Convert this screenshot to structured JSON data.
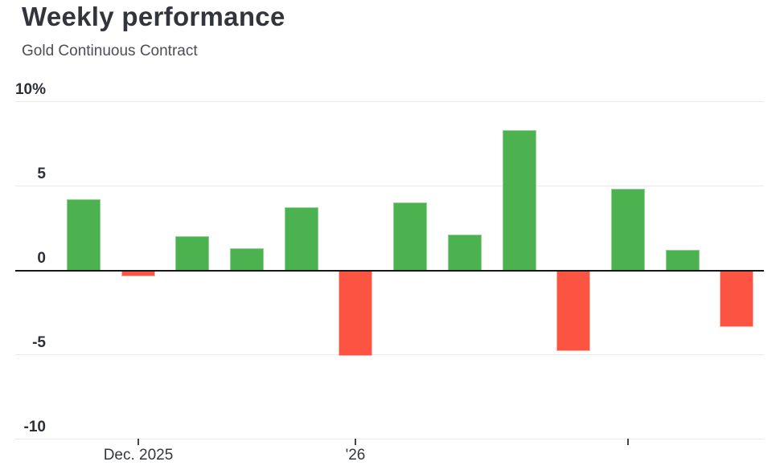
{
  "header": {
    "title": "Weekly performance",
    "subtitle": "Gold Continuous Contract"
  },
  "chart_data": {
    "type": "bar",
    "title": "Weekly performance",
    "subtitle": "Gold Continuous Contract",
    "unit": "%",
    "xlabel": "",
    "ylabel": "",
    "ylim": [
      -10,
      10
    ],
    "grid": true,
    "legend": false,
    "bar_count": 13,
    "values": [
      4.2,
      -0.4,
      2.0,
      1.3,
      3.7,
      -5.1,
      4.0,
      2.1,
      8.3,
      -4.8,
      4.8,
      1.2,
      -3.4
    ],
    "y_ticks": [
      {
        "value": 10,
        "label": "10%"
      },
      {
        "value": 5,
        "label": "5"
      },
      {
        "value": 0,
        "label": "0"
      },
      {
        "value": -5,
        "label": "-5"
      },
      {
        "value": -10,
        "label": "-10"
      }
    ],
    "x_ticks": [
      {
        "bar_index": 1,
        "label": "Dec. 2025"
      },
      {
        "bar_index": 5,
        "label": "'26"
      },
      {
        "bar_index": 10,
        "label": ""
      }
    ],
    "colors": {
      "positive": "#4cb250",
      "positive_edge": "#92d194",
      "negative": "#fc5443",
      "negative_edge": "#fdb2a6",
      "zero_line": "#15161a",
      "gridline": "#e9e9e9"
    }
  }
}
